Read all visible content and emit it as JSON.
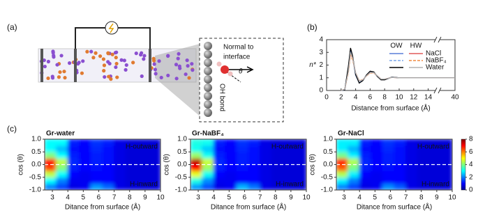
{
  "panels": [
    "(a)",
    "(b)",
    "(c)"
  ],
  "schematic": {
    "normal_label": [
      "Normal to",
      "interface"
    ],
    "angle": "θ",
    "bond_label": "OH bond"
  },
  "chart_data": [
    {
      "type": "line",
      "xlabel": "Distance from surface (Å)",
      "ylabel": "n*",
      "x": [
        2,
        2.5,
        3,
        3.3,
        3.6,
        4,
        4.5,
        5,
        5.5,
        6,
        6.5,
        7,
        7.5,
        8,
        9,
        10,
        12,
        14,
        40
      ],
      "xlim": [
        0,
        40
      ],
      "xbreak": [
        15,
        38
      ],
      "xticks": [
        0,
        2,
        4,
        6,
        8,
        10,
        12,
        14,
        40
      ],
      "ylim": [
        0,
        4
      ],
      "yticks": [
        0,
        1,
        2,
        3,
        4
      ],
      "columns": [
        "OW",
        "HW"
      ],
      "series": [
        {
          "name": "NaCl",
          "ow": {
            "color": "#5a7fd8",
            "dash": false,
            "values": [
              0,
              0.05,
              1.8,
              3.2,
              2.6,
              1.2,
              0.6,
              0.8,
              1.2,
              1.5,
              1.45,
              1.1,
              0.85,
              0.85,
              1.05,
              1.0,
              1.0,
              1.0,
              1.0
            ]
          },
          "hw": {
            "color": "#e05a5a",
            "dash": false,
            "values": [
              0,
              0.1,
              1.5,
              2.9,
              2.5,
              1.4,
              0.75,
              0.85,
              1.15,
              1.4,
              1.4,
              1.15,
              0.9,
              0.9,
              1.03,
              1.0,
              1.0,
              1.0,
              1.0
            ]
          }
        },
        {
          "name": "NaBF₄",
          "ow": {
            "color": "#7aa6ea",
            "dash": true,
            "values": [
              0,
              0.05,
              1.7,
              3.1,
              2.5,
              1.2,
              0.62,
              0.8,
              1.2,
              1.48,
              1.43,
              1.1,
              0.86,
              0.86,
              1.04,
              1.0,
              1.0,
              1.0,
              1.0
            ]
          },
          "hw": {
            "color": "#f08a40",
            "dash": true,
            "values": [
              0,
              0.1,
              1.4,
              2.8,
              2.4,
              1.4,
              0.76,
              0.86,
              1.14,
              1.38,
              1.38,
              1.14,
              0.9,
              0.9,
              1.03,
              1.0,
              1.0,
              1.0,
              1.0
            ]
          }
        },
        {
          "name": "Water",
          "ow": {
            "color": "#000000",
            "dash": false,
            "values": [
              0,
              0.05,
              1.9,
              3.35,
              2.7,
              1.25,
              0.58,
              0.78,
              1.22,
              1.52,
              1.47,
              1.1,
              0.84,
              0.84,
              1.05,
              1.0,
              1.0,
              1.0,
              1.0
            ]
          },
          "hw": {
            "color": "#b4b4b4",
            "dash": false,
            "values": [
              0,
              0.1,
              1.5,
              3.0,
              2.55,
              1.4,
              0.74,
              0.84,
              1.16,
              1.42,
              1.41,
              1.15,
              0.9,
              0.9,
              1.03,
              1.0,
              1.0,
              1.0,
              1.0
            ]
          }
        }
      ]
    },
    {
      "type": "heatmap",
      "title": "Gr-water",
      "xlabel": "Ditance from surface (Å)",
      "ylabel": "cos (θ)",
      "annotations": [
        "H-outward",
        "H-inward"
      ],
      "xbins": [
        2.5,
        3.25,
        4,
        4.75,
        5.5,
        6.25,
        7,
        7.75,
        8.5,
        9.25,
        10
      ],
      "ybins": [
        -1,
        -0.75,
        -0.5,
        -0.25,
        0,
        0.25,
        0.5,
        0.75,
        1
      ],
      "xlim": [
        2.5,
        10
      ],
      "xticks": [
        3,
        4,
        5,
        6,
        7,
        8,
        9,
        10
      ],
      "ylim": [
        -1,
        1
      ],
      "yticks": [
        {
          "value": -1,
          "label": "-1.0"
        },
        {
          "value": -0.5,
          "label": "-0.5"
        },
        {
          "value": 0,
          "label": "0.0"
        },
        {
          "value": 0.5,
          "label": "0.5"
        },
        {
          "value": 1,
          "label": "1.0"
        }
      ],
      "z": [
        [
          2,
          1.5,
          0.8,
          0.9,
          2.2,
          1.8,
          0.8,
          0.7,
          0.7,
          0.7
        ],
        [
          3,
          2,
          0.9,
          0.9,
          1,
          1,
          0.8,
          0.7,
          0.7,
          0.7
        ],
        [
          4.5,
          3,
          1,
          0.9,
          1,
          1,
          0.8,
          0.7,
          0.7,
          0.7
        ],
        [
          6.5,
          4,
          1.2,
          1,
          1.1,
          1,
          0.8,
          0.7,
          0.7,
          0.7
        ],
        [
          7,
          4.5,
          1.3,
          1,
          1.2,
          1.1,
          0.8,
          0.7,
          0.7,
          0.7
        ],
        [
          4,
          3,
          1.2,
          1,
          1.2,
          1.1,
          0.8,
          0.7,
          0.7,
          0.7
        ],
        [
          3,
          2.5,
          1.1,
          1,
          1.3,
          1.1,
          0.8,
          0.7,
          0.7,
          0.7
        ],
        [
          3,
          3,
          1.2,
          1,
          1.4,
          1.2,
          0.8,
          0.7,
          0.7,
          0.7
        ]
      ]
    },
    {
      "type": "heatmap",
      "title": "Gr-NaBF₄",
      "xlabel": "Ditance from surface (Å)",
      "ylabel": "cos (θ)",
      "annotations": [
        "H-outward",
        "H-inward"
      ],
      "xbins": [
        2.5,
        3.25,
        4,
        4.75,
        5.5,
        6.25,
        7,
        7.75,
        8.5,
        9.25,
        10
      ],
      "ybins": [
        -1,
        -0.75,
        -0.5,
        -0.25,
        0,
        0.25,
        0.5,
        0.75,
        1
      ],
      "xlim": [
        2.5,
        10
      ],
      "xticks": [
        3,
        4,
        5,
        6,
        7,
        8,
        9,
        10
      ],
      "ylim": [
        -1,
        1
      ],
      "yticks": [
        {
          "value": -1,
          "label": "-1.0"
        },
        {
          "value": -0.5,
          "label": "-0.5"
        },
        {
          "value": 0,
          "label": "0.0"
        },
        {
          "value": 0.5,
          "label": "0.5"
        },
        {
          "value": 1,
          "label": "1.0"
        }
      ],
      "z": [
        [
          2.2,
          1.6,
          0.8,
          0.9,
          2.4,
          1.9,
          0.8,
          0.7,
          0.7,
          0.7
        ],
        [
          3.2,
          2.1,
          0.9,
          0.9,
          1,
          1,
          0.8,
          0.7,
          0.7,
          0.7
        ],
        [
          4.8,
          3.1,
          1,
          0.9,
          1,
          1,
          0.8,
          0.7,
          0.7,
          0.7
        ],
        [
          7,
          4.2,
          1.2,
          1,
          1.1,
          1,
          0.8,
          0.7,
          0.7,
          0.7
        ],
        [
          7.5,
          4.6,
          1.3,
          1,
          1.2,
          1.1,
          0.8,
          0.7,
          0.7,
          0.7
        ],
        [
          4.2,
          3.1,
          1.2,
          1,
          1.2,
          1.1,
          0.8,
          0.7,
          0.7,
          0.7
        ],
        [
          3.1,
          2.6,
          1.1,
          1,
          1.3,
          1.1,
          0.8,
          0.7,
          0.7,
          0.7
        ],
        [
          3.2,
          3.1,
          1.2,
          1,
          1.4,
          1.2,
          0.8,
          0.7,
          0.7,
          0.7
        ]
      ]
    },
    {
      "type": "heatmap",
      "title": "Gr-NaCl",
      "xlabel": "Ditance from surface (Å)",
      "ylabel": "cos (θ)",
      "annotations": [
        "H-outward",
        "H-inward"
      ],
      "xbins": [
        2.5,
        3.25,
        4,
        4.75,
        5.5,
        6.25,
        7,
        7.75,
        8.5,
        9.25,
        10
      ],
      "ybins": [
        -1,
        -0.75,
        -0.5,
        -0.25,
        0,
        0.25,
        0.5,
        0.75,
        1
      ],
      "xlim": [
        2.5,
        10
      ],
      "xticks": [
        3,
        4,
        5,
        6,
        7,
        8,
        9,
        10
      ],
      "ylim": [
        -1,
        1
      ],
      "yticks": [
        {
          "value": -1,
          "label": "-1.0"
        },
        {
          "value": -0.5,
          "label": "-0.5"
        },
        {
          "value": 0,
          "label": "0.0"
        },
        {
          "value": 0.5,
          "label": "0.5"
        },
        {
          "value": 1,
          "label": "1.0"
        }
      ],
      "z": [
        [
          2,
          1.5,
          0.8,
          0.9,
          2.1,
          1.7,
          0.8,
          0.7,
          0.7,
          0.7
        ],
        [
          2.9,
          2,
          0.9,
          0.9,
          1,
          1,
          0.8,
          0.7,
          0.7,
          0.7
        ],
        [
          4.4,
          2.9,
          1,
          0.9,
          1,
          1,
          0.8,
          0.7,
          0.7,
          0.7
        ],
        [
          6.3,
          3.9,
          1.2,
          1,
          1.1,
          1,
          0.8,
          0.7,
          0.7,
          0.7
        ],
        [
          6.8,
          4.4,
          1.3,
          1,
          1.2,
          1.1,
          0.8,
          0.7,
          0.7,
          0.7
        ],
        [
          3.9,
          2.9,
          1.2,
          1,
          1.2,
          1.1,
          0.8,
          0.7,
          0.7,
          0.7
        ],
        [
          2.9,
          2.4,
          1.1,
          1,
          1.3,
          1.1,
          0.8,
          0.7,
          0.7,
          0.7
        ],
        [
          2.9,
          2.9,
          1.2,
          1,
          1.4,
          1.2,
          0.8,
          0.7,
          0.7,
          0.7
        ]
      ],
      "colorbar": {
        "zlim": [
          0,
          8
        ],
        "ticks": [
          0,
          2,
          4,
          6,
          8
        ]
      }
    }
  ]
}
